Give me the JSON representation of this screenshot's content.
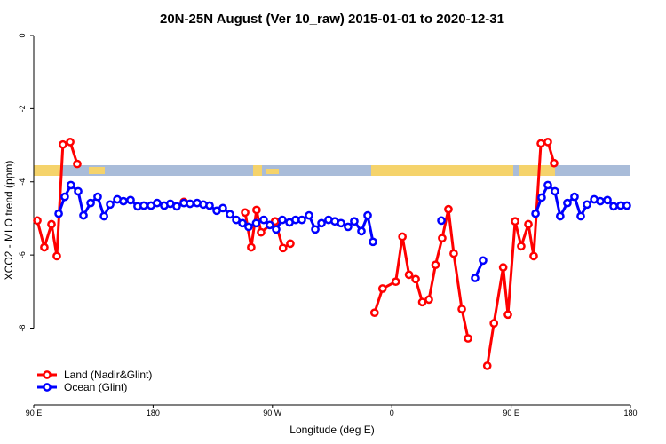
{
  "chart_data": {
    "type": "line",
    "title": "20N-25N August (Ver 10_raw)   2015-01-01 to 2020-12-31",
    "x_label": "Longitude (deg E)",
    "y_label": "XCO2 - MLO trend (ppm)",
    "xlim": [
      90,
      540
    ],
    "xticks": [
      {
        "value": 90,
        "label": "90 E"
      },
      180,
      {
        "value": 270,
        "label": "90 W"
      },
      {
        "value": 360,
        "label": "0"
      },
      {
        "value": 450,
        "label": "90 E"
      },
      {
        "value": 540,
        "label": "180"
      }
    ],
    "ylim": [
      -10.1,
      0
    ],
    "yticks": [
      0,
      -2,
      -4,
      -6,
      -8
    ],
    "legend": "bottom-left",
    "series": [
      {
        "name": "Land (Nadir&Glint)",
        "color": "#ff0000",
        "x": [
          92.7,
          98,
          103.4,
          107.4,
          112,
          117.5,
          122.8,
          null,
          203.2,
          null,
          249.4,
          254,
          258,
          261.4,
          272,
          278,
          283.5,
          null,
          347,
          353,
          363,
          368,
          373,
          378,
          383,
          388,
          393,
          398,
          402.7,
          406.7,
          412.8,
          417.5,
          null,
          432,
          437,
          444,
          447.6,
          453,
          457.6,
          463,
          467,
          472.4,
          477.7,
          482.4
        ],
        "values": [
          -5.06,
          -5.79,
          -5.16,
          -6.03,
          -2.98,
          -2.91,
          -3.51,
          null,
          -4.55,
          null,
          -4.84,
          -5.79,
          -4.77,
          -5.38,
          -5.08,
          -5.81,
          -5.69,
          null,
          -7.58,
          -6.92,
          -6.73,
          -5.5,
          -6.54,
          -6.66,
          -7.29,
          -7.22,
          -6.27,
          -5.54,
          -4.75,
          -5.96,
          -7.48,
          -8.28,
          null,
          -9.03,
          -7.87,
          -6.34,
          -7.63,
          -5.08,
          -5.76,
          -5.16,
          -6.03,
          -2.95,
          -2.91,
          -3.49
        ]
      },
      {
        "name": "Ocean (Glint)",
        "color": "#0000ff",
        "x": [
          108.8,
          113.4,
          118,
          123.5,
          127.5,
          132.9,
          138.2,
          143,
          147.6,
          153,
          157.6,
          163,
          168.3,
          173,
          178.4,
          183,
          188.4,
          193,
          197.8,
          203.2,
          207.9,
          213.2,
          217.9,
          222.6,
          228,
          232.6,
          238,
          242.7,
          247.4,
          252,
          257.7,
          263.4,
          268,
          272.8,
          277.5,
          282.9,
          287.5,
          292.2,
          297.6,
          302.3,
          307,
          312.3,
          317,
          321.7,
          327,
          331.7,
          337.1,
          341.8,
          345.8,
          null,
          397.4,
          null,
          422.8,
          428.8,
          null,
          468.4,
          473,
          477.7,
          483,
          487,
          492.4,
          497.8,
          502.5,
          507.2,
          512.6,
          517.2,
          522.6,
          527.3,
          532.6,
          537.3
        ],
        "values": [
          -4.87,
          -4.41,
          -4.09,
          -4.26,
          -4.92,
          -4.58,
          -4.41,
          -4.94,
          -4.62,
          -4.48,
          -4.53,
          -4.5,
          -4.67,
          -4.65,
          -4.65,
          -4.58,
          -4.65,
          -4.6,
          -4.67,
          -4.58,
          -4.6,
          -4.58,
          -4.62,
          -4.65,
          -4.79,
          -4.72,
          -4.89,
          -5.04,
          -5.13,
          -5.23,
          -5.13,
          -5.04,
          -5.18,
          -5.3,
          -5.04,
          -5.11,
          -5.04,
          -5.04,
          -4.92,
          -5.3,
          -5.13,
          -5.04,
          -5.08,
          -5.13,
          -5.23,
          -5.08,
          -5.35,
          -4.92,
          -5.64,
          null,
          -5.06,
          null,
          -6.63,
          -6.15,
          null,
          -4.87,
          -4.43,
          -4.09,
          -4.26,
          -4.94,
          -4.58,
          -4.41,
          -4.94,
          -4.62,
          -4.48,
          -4.53,
          -4.5,
          -4.67,
          -4.65,
          -4.65
        ]
      }
    ]
  }
}
